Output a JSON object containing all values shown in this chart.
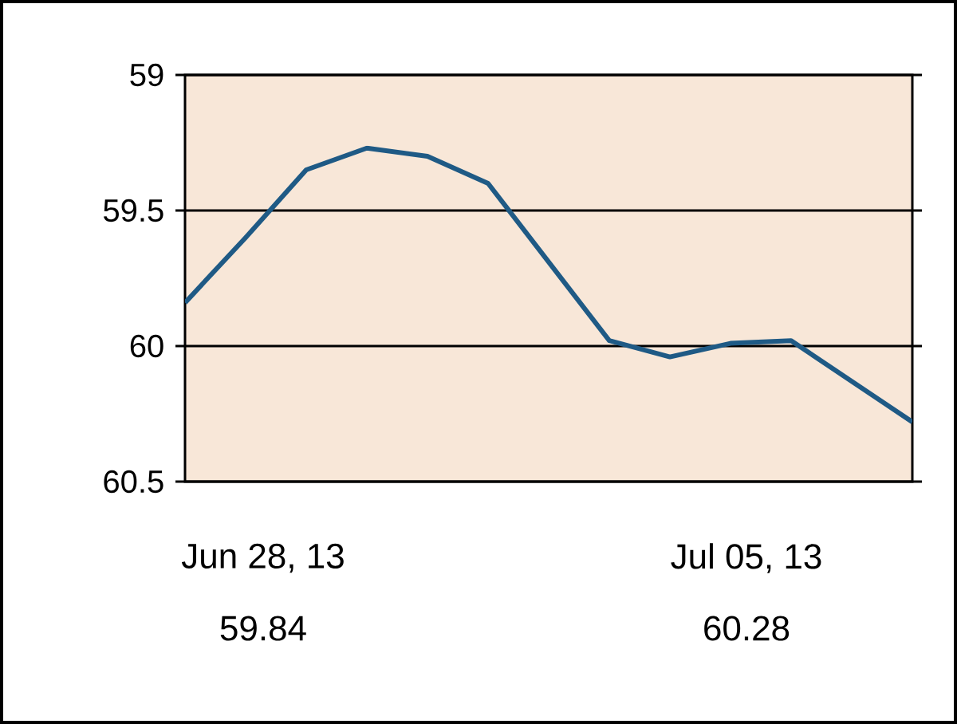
{
  "chart_data": {
    "type": "line",
    "categories": [
      null,
      null,
      null,
      null,
      null,
      null,
      null,
      null,
      null,
      null,
      null,
      null,
      null
    ],
    "series": [
      {
        "color": "#1f5a85",
        "values": [
          59.84,
          59.6,
          59.35,
          59.27,
          59.3,
          59.4,
          59.69,
          59.98,
          60.04,
          59.99,
          59.98,
          60.13,
          60.28
        ]
      }
    ],
    "ylim": [
      60.5,
      59
    ],
    "yticks": [
      59,
      59.5,
      60,
      60.5
    ],
    "grid": "y",
    "marker": "none",
    "line_style": "solid",
    "annotations": [
      "Jun 28, 13",
      "59.84",
      "Jul 05, 13",
      "60.28"
    ]
  }
}
